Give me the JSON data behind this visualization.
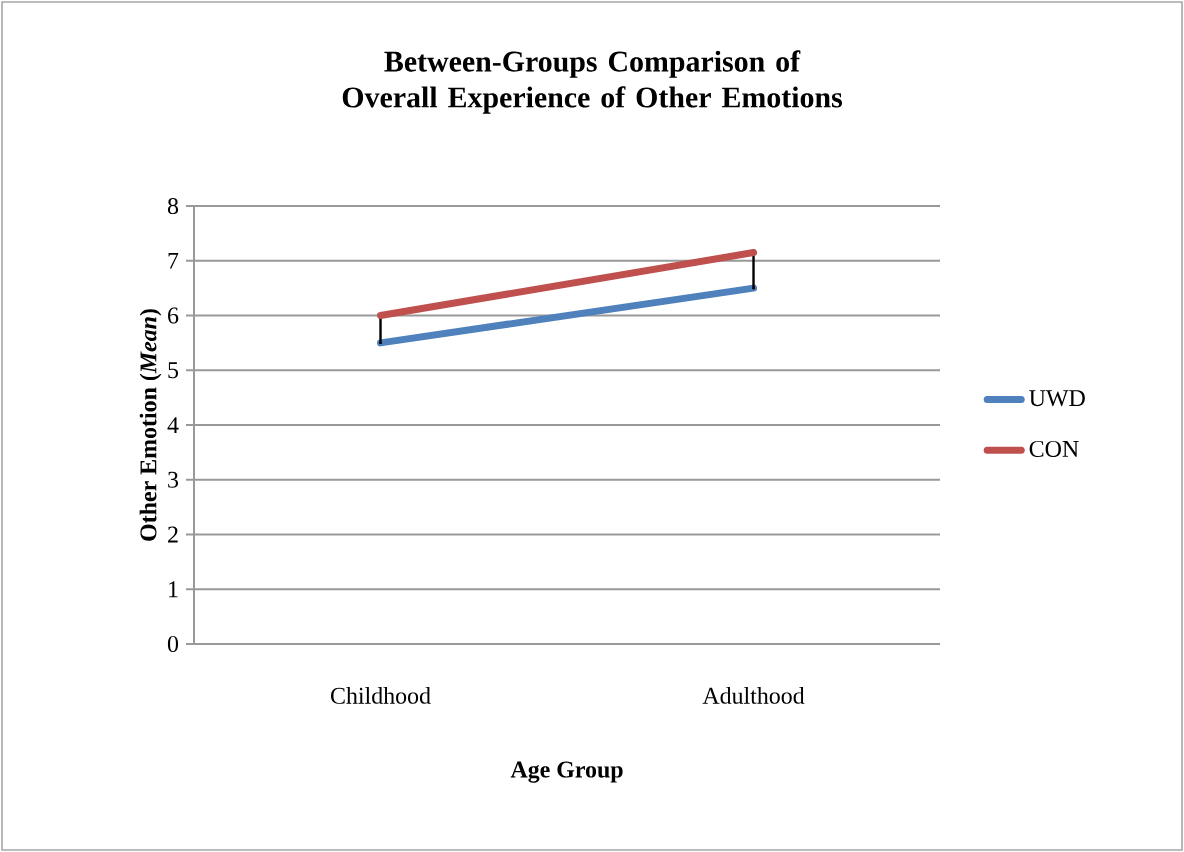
{
  "chart_data": {
    "type": "line",
    "title": "Between-Groups Comparison of Overall Experience of Other Emotions",
    "xlabel": "Age Group",
    "ylabel": "Other Emotion (*Mean*)",
    "categories": [
      "Childhood",
      "Adulthood"
    ],
    "series": [
      {
        "name": "UWD",
        "color": "#4f81bd",
        "values": [
          5.5,
          6.5
        ],
        "errors": [
          [
            5.5,
            6.0
          ],
          [
            6.5,
            7.15
          ]
        ]
      },
      {
        "name": "CON",
        "color": "#c0504d",
        "values": [
          6.0,
          7.15
        ]
      }
    ],
    "ylim": [
      0,
      8
    ],
    "yticks": [
      0,
      1,
      2,
      3,
      4,
      5,
      6,
      7,
      8
    ],
    "grid": "y",
    "legend": "right",
    "marker": "none",
    "line_style": "solid"
  }
}
